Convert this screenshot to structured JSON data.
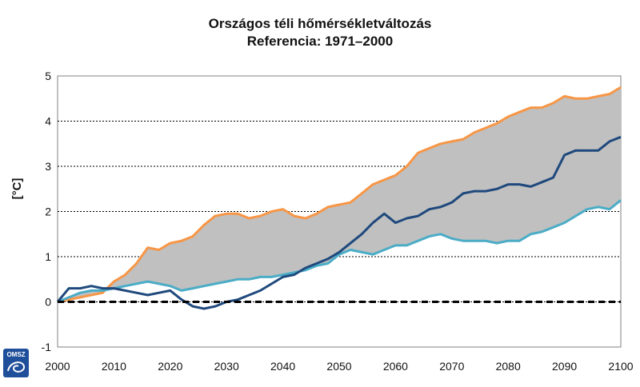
{
  "chart_data": {
    "type": "line",
    "title": "Országos téli hőmérsékletváltozás",
    "subtitle": "Referencia: 1971–2000",
    "xlabel": "",
    "ylabel": "[°C]",
    "xlim": [
      2000,
      2100
    ],
    "ylim": [
      -1,
      5
    ],
    "x_ticks": [
      "2000",
      "2010",
      "2020",
      "2030",
      "2040",
      "2050",
      "2060",
      "2070",
      "2080",
      "2090",
      "2100"
    ],
    "y_ticks": [
      "-1",
      "0",
      "1",
      "2",
      "3",
      "4",
      "5"
    ],
    "grid": "horizontal",
    "legend": "none",
    "logo_text": "OMSZ",
    "series": [
      {
        "color": "#f79646",
        "role": "upper-bound",
        "points": [
          [
            2000,
            0.0
          ],
          [
            2002,
            0.05
          ],
          [
            2004,
            0.1
          ],
          [
            2006,
            0.15
          ],
          [
            2008,
            0.2
          ],
          [
            2010,
            0.45
          ],
          [
            2012,
            0.6
          ],
          [
            2014,
            0.85
          ],
          [
            2016,
            1.2
          ],
          [
            2018,
            1.15
          ],
          [
            2020,
            1.3
          ],
          [
            2022,
            1.35
          ],
          [
            2024,
            1.45
          ],
          [
            2026,
            1.7
          ],
          [
            2028,
            1.9
          ],
          [
            2030,
            1.95
          ],
          [
            2032,
            1.95
          ],
          [
            2034,
            1.85
          ],
          [
            2036,
            1.9
          ],
          [
            2038,
            2.0
          ],
          [
            2040,
            2.05
          ],
          [
            2042,
            1.9
          ],
          [
            2044,
            1.85
          ],
          [
            2046,
            1.95
          ],
          [
            2048,
            2.1
          ],
          [
            2050,
            2.15
          ],
          [
            2052,
            2.2
          ],
          [
            2054,
            2.4
          ],
          [
            2056,
            2.6
          ],
          [
            2058,
            2.7
          ],
          [
            2060,
            2.8
          ],
          [
            2062,
            3.0
          ],
          [
            2064,
            3.3
          ],
          [
            2066,
            3.4
          ],
          [
            2068,
            3.5
          ],
          [
            2070,
            3.55
          ],
          [
            2072,
            3.6
          ],
          [
            2074,
            3.75
          ],
          [
            2076,
            3.85
          ],
          [
            2078,
            3.95
          ],
          [
            2080,
            4.1
          ],
          [
            2082,
            4.2
          ],
          [
            2084,
            4.3
          ],
          [
            2086,
            4.3
          ],
          [
            2088,
            4.4
          ],
          [
            2090,
            4.55
          ],
          [
            2092,
            4.5
          ],
          [
            2094,
            4.5
          ],
          [
            2096,
            4.55
          ],
          [
            2098,
            4.6
          ],
          [
            2100,
            4.75
          ]
        ]
      },
      {
        "color": "#4bacc6",
        "role": "lower-bound",
        "points": [
          [
            2000,
            0.0
          ],
          [
            2002,
            0.1
          ],
          [
            2004,
            0.2
          ],
          [
            2006,
            0.25
          ],
          [
            2008,
            0.25
          ],
          [
            2010,
            0.3
          ],
          [
            2012,
            0.35
          ],
          [
            2014,
            0.4
          ],
          [
            2016,
            0.45
          ],
          [
            2018,
            0.4
          ],
          [
            2020,
            0.35
          ],
          [
            2022,
            0.25
          ],
          [
            2024,
            0.3
          ],
          [
            2026,
            0.35
          ],
          [
            2028,
            0.4
          ],
          [
            2030,
            0.45
          ],
          [
            2032,
            0.5
          ],
          [
            2034,
            0.5
          ],
          [
            2036,
            0.55
          ],
          [
            2038,
            0.55
          ],
          [
            2040,
            0.6
          ],
          [
            2042,
            0.65
          ],
          [
            2044,
            0.7
          ],
          [
            2046,
            0.8
          ],
          [
            2048,
            0.85
          ],
          [
            2050,
            1.05
          ],
          [
            2052,
            1.15
          ],
          [
            2054,
            1.1
          ],
          [
            2056,
            1.05
          ],
          [
            2058,
            1.15
          ],
          [
            2060,
            1.25
          ],
          [
            2062,
            1.25
          ],
          [
            2064,
            1.35
          ],
          [
            2066,
            1.45
          ],
          [
            2068,
            1.5
          ],
          [
            2070,
            1.4
          ],
          [
            2072,
            1.35
          ],
          [
            2074,
            1.35
          ],
          [
            2076,
            1.35
          ],
          [
            2078,
            1.3
          ],
          [
            2080,
            1.35
          ],
          [
            2082,
            1.35
          ],
          [
            2084,
            1.5
          ],
          [
            2086,
            1.55
          ],
          [
            2088,
            1.65
          ],
          [
            2090,
            1.75
          ],
          [
            2092,
            1.9
          ],
          [
            2094,
            2.05
          ],
          [
            2096,
            2.1
          ],
          [
            2098,
            2.05
          ],
          [
            2100,
            2.25
          ]
        ]
      },
      {
        "color": "#1f497d",
        "role": "median",
        "points": [
          [
            2000,
            0.0
          ],
          [
            2002,
            0.3
          ],
          [
            2004,
            0.3
          ],
          [
            2006,
            0.35
          ],
          [
            2008,
            0.3
          ],
          [
            2010,
            0.3
          ],
          [
            2012,
            0.25
          ],
          [
            2014,
            0.2
          ],
          [
            2016,
            0.15
          ],
          [
            2018,
            0.2
          ],
          [
            2020,
            0.25
          ],
          [
            2022,
            0.05
          ],
          [
            2024,
            -0.1
          ],
          [
            2026,
            -0.15
          ],
          [
            2028,
            -0.1
          ],
          [
            2030,
            0.0
          ],
          [
            2032,
            0.05
          ],
          [
            2034,
            0.15
          ],
          [
            2036,
            0.25
          ],
          [
            2038,
            0.4
          ],
          [
            2040,
            0.55
          ],
          [
            2042,
            0.6
          ],
          [
            2044,
            0.75
          ],
          [
            2046,
            0.85
          ],
          [
            2048,
            0.95
          ],
          [
            2050,
            1.1
          ],
          [
            2052,
            1.3
          ],
          [
            2054,
            1.5
          ],
          [
            2056,
            1.75
          ],
          [
            2058,
            1.95
          ],
          [
            2060,
            1.75
          ],
          [
            2062,
            1.85
          ],
          [
            2064,
            1.9
          ],
          [
            2066,
            2.05
          ],
          [
            2068,
            2.1
          ],
          [
            2070,
            2.2
          ],
          [
            2072,
            2.4
          ],
          [
            2074,
            2.45
          ],
          [
            2076,
            2.45
          ],
          [
            2078,
            2.5
          ],
          [
            2080,
            2.6
          ],
          [
            2082,
            2.6
          ],
          [
            2084,
            2.55
          ],
          [
            2086,
            2.65
          ],
          [
            2088,
            2.75
          ],
          [
            2090,
            3.25
          ],
          [
            2092,
            3.35
          ],
          [
            2094,
            3.35
          ],
          [
            2096,
            3.35
          ],
          [
            2098,
            3.55
          ],
          [
            2100,
            3.65
          ]
        ]
      }
    ],
    "reference_line": {
      "y": 0,
      "style": "dashed",
      "color": "#000000"
    },
    "band_fill": "#c0c0c0"
  }
}
